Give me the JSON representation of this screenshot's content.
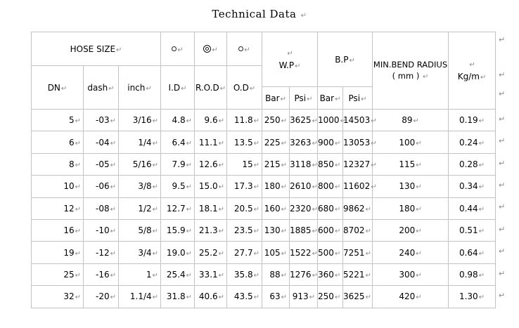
{
  "title": {
    "text": "Technical Data"
  },
  "marks": {
    "pilcrow": "↵"
  },
  "colors": {
    "border": "#c3c3c3",
    "pilcrow_gray": "#8a8a8a",
    "text": "#000000",
    "background": "#ffffff"
  },
  "table": {
    "columns": [
      "dn",
      "dash",
      "inch",
      "id",
      "rod",
      "od",
      "wp-bar",
      "wp-psi",
      "bp-bar",
      "bp-psi",
      "min-bend-radius",
      "kg-per-m"
    ],
    "header": {
      "hose_size": "HOSE SIZE",
      "symbols": [
        "circle",
        "bullseye",
        "circle"
      ],
      "sub": [
        "DN",
        "dash",
        "inch",
        "I.D",
        "R.O.D",
        "O.D"
      ],
      "wp_label": "W.P",
      "bp_label": "B.P",
      "units": [
        "Bar",
        "Psi",
        "Bar",
        "Psi"
      ],
      "min_bend_line1": "MIN.BEND RADIUS",
      "min_bend_line2": "( mm )",
      "kgm_label": "Kg/m"
    },
    "rows": [
      [
        "5",
        "-03",
        "3/16",
        "4.8",
        "9.6",
        "11.8",
        "250",
        "3625",
        "1000",
        "14503",
        "89",
        "0.19"
      ],
      [
        "6",
        "-04",
        "1/4",
        "6.4",
        "11.1",
        "13.5",
        "225",
        "3263",
        "900",
        "13053",
        "100",
        "0.24"
      ],
      [
        "8",
        "-05",
        "5/16",
        "7.9",
        "12.6",
        "15",
        "215",
        "3118",
        "850",
        "12327",
        "115",
        "0.28"
      ],
      [
        "10",
        "-06",
        "3/8",
        "9.5",
        "15.0",
        "17.3",
        "180",
        "2610",
        "800",
        "11602",
        "130",
        "0.34"
      ],
      [
        "12",
        "-08",
        "1/2",
        "12.7",
        "18.1",
        "20.5",
        "160",
        "2320",
        "680",
        "9862",
        "180",
        "0.44"
      ],
      [
        "16",
        "-10",
        "5/8",
        "15.9",
        "21.3",
        "23.5",
        "130",
        "1885",
        "600",
        "8702",
        "200",
        "0.51"
      ],
      [
        "19",
        "-12",
        "3/4",
        "19.0",
        "25.2",
        "27.7",
        "105",
        "1522",
        "500",
        "7251",
        "240",
        "0.64"
      ],
      [
        "25",
        "-16",
        "1",
        "25.4",
        "33.1",
        "35.8",
        "88",
        "1276",
        "360",
        "5221",
        "300",
        "0.98"
      ],
      [
        "32",
        "-20",
        "1.1/4",
        "31.8",
        "40.6",
        "43.5",
        "63",
        "913",
        "250",
        "3625",
        "420",
        "1.30"
      ]
    ]
  }
}
